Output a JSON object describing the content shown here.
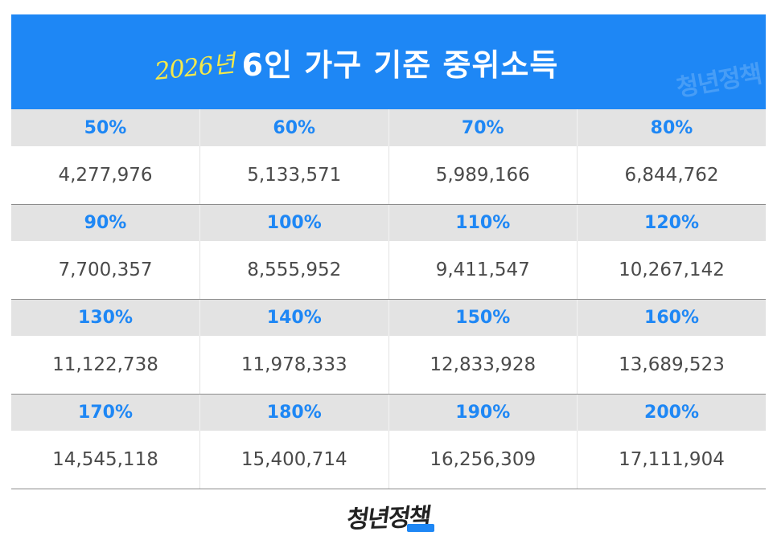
{
  "banner": {
    "year": "2026년",
    "heading": "6인 가구 기준 중위소득",
    "watermark": "청년정책"
  },
  "table": {
    "rows": [
      {
        "cells": [
          {
            "percent": "50%",
            "amount": "4,277,976"
          },
          {
            "percent": "60%",
            "amount": "5,133,571"
          },
          {
            "percent": "70%",
            "amount": "5,989,166"
          },
          {
            "percent": "80%",
            "amount": "6,844,762"
          }
        ]
      },
      {
        "cells": [
          {
            "percent": "90%",
            "amount": "7,700,357"
          },
          {
            "percent": "100%",
            "amount": "8,555,952"
          },
          {
            "percent": "110%",
            "amount": "9,411,547"
          },
          {
            "percent": "120%",
            "amount": "10,267,142"
          }
        ]
      },
      {
        "cells": [
          {
            "percent": "130%",
            "amount": "11,122,738"
          },
          {
            "percent": "140%",
            "amount": "11,978,333"
          },
          {
            "percent": "150%",
            "amount": "12,833,928"
          },
          {
            "percent": "160%",
            "amount": "13,689,523"
          }
        ]
      },
      {
        "cells": [
          {
            "percent": "170%",
            "amount": "14,545,118"
          },
          {
            "percent": "180%",
            "amount": "15,400,714"
          },
          {
            "percent": "190%",
            "amount": "16,256,309"
          },
          {
            "percent": "200%",
            "amount": "17,111,904"
          }
        ]
      }
    ]
  },
  "footer": {
    "logo": "청년정책"
  },
  "colors": {
    "brand_blue": "#1e87f5",
    "year_yellow": "#f5e94a",
    "header_gray": "#e3e3e3",
    "value_text": "#4a4a4a"
  }
}
